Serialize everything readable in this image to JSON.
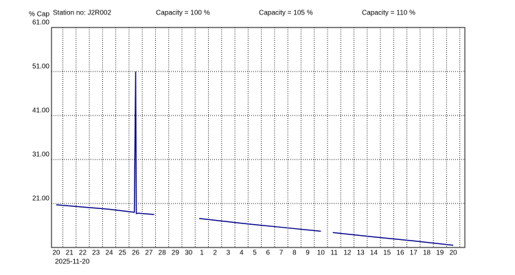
{
  "chart_data": {
    "type": "line",
    "y_label": "% Cap",
    "station": "Station no: J2R002",
    "annotations": [
      {
        "text": "Capacity = 100 %",
        "color": "#008000"
      },
      {
        "text": "Capacity = 105 %",
        "color": "#ff0000"
      },
      {
        "text": "Capacity = 110 %",
        "color": "#000000"
      }
    ],
    "start_date": "2025-11-20",
    "x": [
      0,
      2,
      4,
      5.9,
      6.0,
      6.05,
      6.2,
      7.4,
      null,
      10.8,
      14,
      17,
      20,
      null,
      20.9,
      24,
      27,
      30
    ],
    "series": [
      {
        "color": "#00008b",
        "values": [
          20.7,
          20.2,
          19.7,
          19.0,
          51.0,
          18.7,
          18.8,
          18.5,
          null,
          17.6,
          16.5,
          15.6,
          14.7,
          null,
          14.4,
          13.4,
          12.5,
          11.5
        ]
      }
    ],
    "xlim": [
      -0.36,
      30.88
    ],
    "xticks": [
      {
        "value": 0,
        "label": "20"
      },
      {
        "value": 1,
        "label": "21"
      },
      {
        "value": 2,
        "label": "22"
      },
      {
        "value": 3,
        "label": "23"
      },
      {
        "value": 4,
        "label": "24"
      },
      {
        "value": 5,
        "label": "25"
      },
      {
        "value": 6,
        "label": "26"
      },
      {
        "value": 7,
        "label": "27"
      },
      {
        "value": 8,
        "label": "28"
      },
      {
        "value": 9,
        "label": "29"
      },
      {
        "value": 10,
        "label": "30"
      },
      {
        "value": 11,
        "label": "1"
      },
      {
        "value": 12,
        "label": "2"
      },
      {
        "value": 13,
        "label": "3"
      },
      {
        "value": 14,
        "label": "4"
      },
      {
        "value": 15,
        "label": "5"
      },
      {
        "value": 16,
        "label": "6"
      },
      {
        "value": 17,
        "label": "7"
      },
      {
        "value": 18,
        "label": "8"
      },
      {
        "value": 19,
        "label": "9"
      },
      {
        "value": 20,
        "label": "10"
      },
      {
        "value": 21,
        "label": "11"
      },
      {
        "value": 22,
        "label": "12"
      },
      {
        "value": 23,
        "label": "13"
      },
      {
        "value": 24,
        "label": "14"
      },
      {
        "value": 25,
        "label": "15"
      },
      {
        "value": 26,
        "label": "16"
      },
      {
        "value": 27,
        "label": "17"
      },
      {
        "value": 28,
        "label": "18"
      },
      {
        "value": 29,
        "label": "19"
      },
      {
        "value": 30,
        "label": "20"
      }
    ],
    "ylim": [
      11,
      61
    ],
    "yticks": [
      {
        "value": 21,
        "label": "21.00"
      },
      {
        "value": 31,
        "label": "31.00"
      },
      {
        "value": 41,
        "label": "41.00"
      },
      {
        "value": 51,
        "label": "51.00"
      },
      {
        "value": 61,
        "label": "61.00"
      }
    ],
    "grid": true
  }
}
